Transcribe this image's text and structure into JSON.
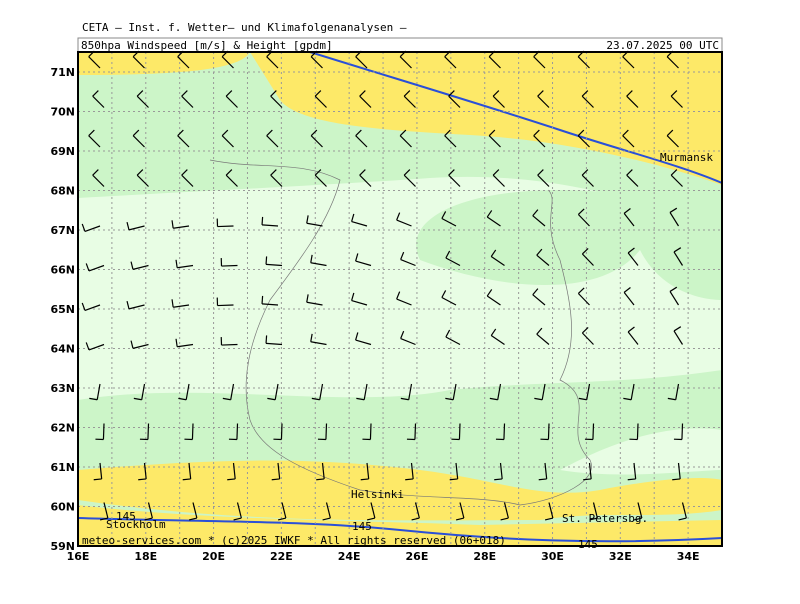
{
  "header": {
    "institute": "CETA — Inst. f. Wetter— und Klimafolgenanalysen —",
    "field": "850hpa_Windspeed_[m/s]_&_Height_[gpdm]",
    "valid_time": "23.07.2025 00 UTC"
  },
  "map": {
    "lat_labels": [
      "71N",
      "70N",
      "69N",
      "68N",
      "67N",
      "66N",
      "65N",
      "64N",
      "63N",
      "62N",
      "61N",
      "60N",
      "59N"
    ],
    "lon_labels": [
      "16E",
      "18E",
      "20E",
      "22E",
      "24E",
      "26E",
      "28E",
      "30E",
      "32E",
      "34E"
    ],
    "cities": [
      "Murmansk",
      "Helsinki",
      "St. Petersbg.",
      "Stockholm"
    ],
    "contour_labels": [
      "145",
      "145",
      "145"
    ]
  },
  "footer": "meteo-services.com * (c)2025 IWKF * All rights reserved (06+018)"
}
